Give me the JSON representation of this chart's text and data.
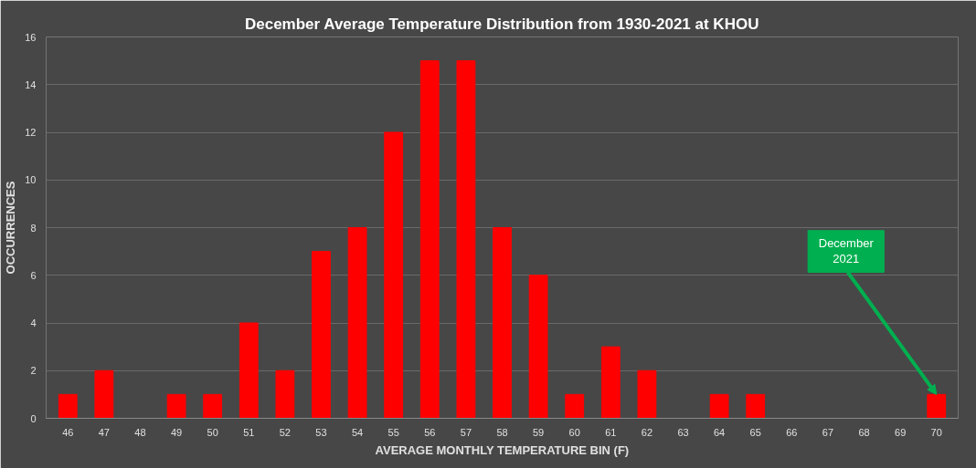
{
  "chart_data": {
    "type": "bar",
    "title": "December Average Temperature Distribution from 1930-2021 at KHOU",
    "xlabel": "AVERAGE MONTHLY TEMPERATURE BIN (F)",
    "ylabel": "OCCURRENCES",
    "categories": [
      "46",
      "47",
      "48",
      "49",
      "50",
      "51",
      "52",
      "53",
      "54",
      "55",
      "56",
      "57",
      "58",
      "59",
      "60",
      "61",
      "62",
      "63",
      "64",
      "65",
      "66",
      "67",
      "68",
      "69",
      "70"
    ],
    "values": [
      1,
      2,
      0,
      1,
      1,
      4,
      2,
      7,
      8,
      12,
      15,
      15,
      8,
      6,
      1,
      3,
      2,
      0,
      1,
      1,
      0,
      0,
      0,
      0,
      1
    ],
    "color": "#ff0000",
    "ylim": [
      0,
      16
    ],
    "yticks": [
      0,
      2,
      4,
      6,
      8,
      10,
      12,
      14,
      16
    ],
    "grid": "y",
    "annotations": [
      {
        "text": "December\n2021",
        "x": "70",
        "y": 1
      }
    ]
  }
}
